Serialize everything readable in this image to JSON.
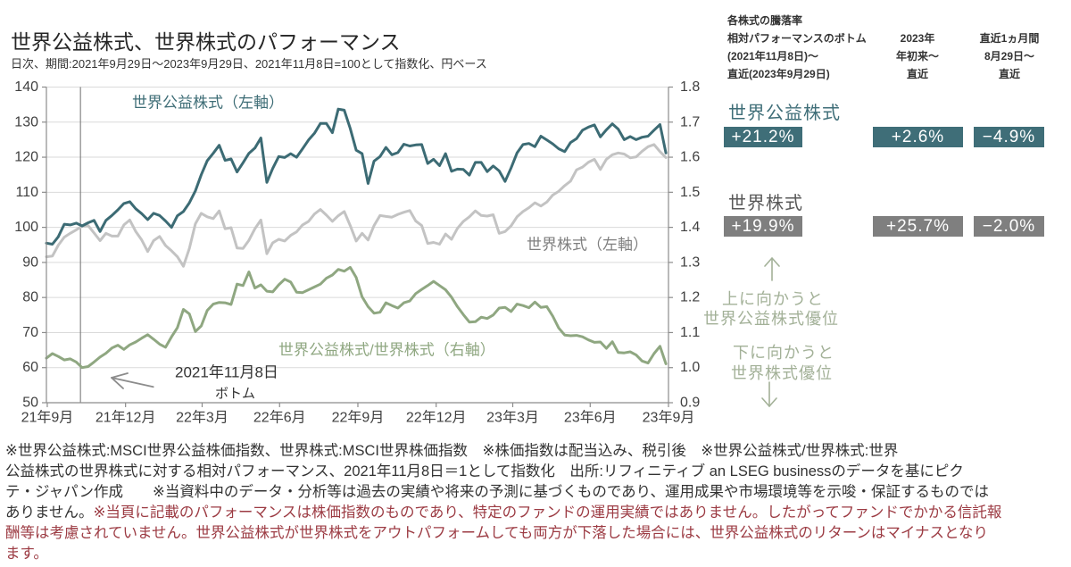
{
  "page": {
    "title": "世界公益株式、世界株式のパフォーマンス",
    "subtitle": "日次、期間:2021年9月29日～2023年9月29日、2021年11月8日=100として指数化、円ベース"
  },
  "chart_data": {
    "type": "line",
    "title": "世界公益株式、世界株式のパフォーマンス",
    "subtitle": "日次、期間:2021年9月29日～2023年9月29日、2021年11月8日=100として指数化、円ベース",
    "xlabel": "",
    "ylabel_left": "",
    "ylabel_right": "",
    "x_range": [
      "2021-09-29",
      "2023-09-30"
    ],
    "series_start_date": "2021-09-29",
    "series_step_days": 7,
    "x_ticks": [
      {
        "label": "21年9月",
        "date": "2021-09-30"
      },
      {
        "label": "21年12月",
        "date": "2021-12-31"
      },
      {
        "label": "22年3月",
        "date": "2022-03-31"
      },
      {
        "label": "22年6月",
        "date": "2022-06-30"
      },
      {
        "label": "22年9月",
        "date": "2022-09-30"
      },
      {
        "label": "22年12月",
        "date": "2022-12-31"
      },
      {
        "label": "23年3月",
        "date": "2023-03-31"
      },
      {
        "label": "23年6月",
        "date": "2023-06-30"
      },
      {
        "label": "23年9月",
        "date": "2023-09-30"
      }
    ],
    "y_left": {
      "range": [
        50,
        140
      ],
      "ticks": [
        50,
        60,
        70,
        80,
        90,
        100,
        110,
        120,
        130,
        140
      ]
    },
    "y_right": {
      "range": [
        0.9,
        1.8
      ],
      "ticks": [
        "0.9",
        "1.0",
        "1.1",
        "1.2",
        "1.3",
        "1.4",
        "1.5",
        "1.6",
        "1.7",
        "1.8"
      ]
    },
    "grid": "horizontal",
    "legend": "inline labels",
    "reference_line": {
      "date": "2021-11-08",
      "label": "2021年11月8日",
      "sublabel": "ボトム"
    },
    "series": [
      {
        "name": "世界公益株式",
        "label": "世界公益株式（左軸）",
        "axis": "left",
        "color": "#3c6b74",
        "label_color": "#3e6d76",
        "values": [
          95.5,
          95.2,
          97.3,
          100.9,
          100.7,
          101.2,
          100.4,
          101.3,
          102.0,
          98.8,
          102.0,
          103.4,
          105.0,
          106.8,
          107.3,
          105.3,
          103.9,
          102.2,
          104.0,
          103.4,
          101.8,
          100.0,
          103.3,
          104.5,
          107.0,
          110.4,
          115.0,
          119.0,
          121.1,
          123.4,
          119.1,
          119.5,
          115.8,
          118.4,
          121.1,
          122.6,
          125.5,
          112.8,
          116.8,
          120.2,
          119.9,
          121.0,
          120.0,
          122.4,
          124.9,
          126.8,
          129.6,
          129.6,
          127.0,
          133.7,
          133.4,
          128.2,
          122.0,
          121.0,
          112.5,
          118.9,
          120.2,
          122.8,
          120.7,
          121.3,
          123.7,
          123.2,
          123.5,
          123.6,
          118.2,
          119.4,
          117.6,
          121.0,
          116.0,
          116.6,
          116.5,
          114.9,
          118.5,
          118.5,
          115.9,
          117.5,
          116.1,
          113.1,
          116.9,
          121.2,
          123.6,
          123.9,
          123.0,
          126.0,
          124.9,
          123.8,
          122.4,
          121.6,
          124.2,
          125.3,
          127.7,
          128.6,
          129.2,
          125.8,
          127.8,
          129.5,
          128.0,
          125.0,
          125.9,
          125.0,
          125.7,
          126.0,
          127.7,
          129.3,
          121.2
        ]
      },
      {
        "name": "世界株式",
        "label": "世界株式（左軸）",
        "axis": "left",
        "color": "#c3c3c3",
        "label_color": "#7f7f7f",
        "values": [
          91.6,
          91.8,
          94.9,
          97.2,
          98.3,
          99.3,
          100.3,
          100.5,
          98.4,
          96.2,
          98.3,
          97.5,
          97.5,
          100.7,
          102.1,
          98.8,
          96.4,
          93.1,
          96.2,
          97.4,
          94.8,
          93.3,
          91.6,
          88.9,
          94.0,
          101.0,
          104.0,
          103.0,
          102.5,
          104.7,
          99.6,
          99.9,
          94.1,
          94.0,
          96.3,
          99.6,
          102.1,
          92.5,
          95.6,
          96.6,
          96.1,
          97.7,
          98.7,
          100.7,
          101.7,
          103.8,
          105.1,
          103.5,
          101.7,
          103.3,
          104.5,
          100.5,
          96.1,
          98.3,
          96.4,
          100.5,
          103.4,
          103.1,
          102.9,
          103.7,
          104.3,
          104.8,
          101.8,
          100.5,
          95.4,
          95.7,
          95.2,
          98.1,
          96.6,
          99.7,
          101.7,
          103.0,
          104.7,
          103.4,
          103.2,
          103.6,
          98.3,
          98.8,
          100.4,
          103.0,
          104.5,
          105.6,
          107.0,
          106.1,
          107.2,
          109.2,
          110.3,
          111.9,
          113.2,
          116.4,
          117.2,
          118.6,
          119.4,
          116.5,
          119.4,
          120.7,
          121.2,
          120.9,
          119.8,
          120.1,
          121.7,
          123.0,
          123.6,
          121.6,
          119.9
        ]
      },
      {
        "name": "世界公益株式/世界株式",
        "label": "世界公益株式/世界株式（右軸）",
        "axis": "right",
        "color": "#8fa781",
        "label_color": "#8fa781",
        "values": [
          1.027,
          1.04,
          1.032,
          1.022,
          1.025,
          1.016,
          1.0,
          1.003,
          1.016,
          1.03,
          1.041,
          1.056,
          1.064,
          1.052,
          1.065,
          1.073,
          1.084,
          1.094,
          1.081,
          1.067,
          1.058,
          1.088,
          1.114,
          1.166,
          1.153,
          1.103,
          1.119,
          1.163,
          1.181,
          1.186,
          1.185,
          1.18,
          1.238,
          1.234,
          1.273,
          1.227,
          1.236,
          1.218,
          1.216,
          1.236,
          1.252,
          1.244,
          1.215,
          1.214,
          1.222,
          1.23,
          1.238,
          1.255,
          1.264,
          1.28,
          1.275,
          1.286,
          1.257,
          1.202,
          1.174,
          1.155,
          1.158,
          1.185,
          1.177,
          1.17,
          1.185,
          1.19,
          1.211,
          1.223,
          1.234,
          1.246,
          1.234,
          1.222,
          1.201,
          1.174,
          1.151,
          1.13,
          1.131,
          1.144,
          1.14,
          1.15,
          1.17,
          1.172,
          1.16,
          1.181,
          1.177,
          1.171,
          1.187,
          1.172,
          1.174,
          1.147,
          1.113,
          1.093,
          1.091,
          1.092,
          1.088,
          1.079,
          1.072,
          1.073,
          1.055,
          1.074,
          1.043,
          1.042,
          1.045,
          1.036,
          1.019,
          1.013,
          1.04,
          1.061,
          1.011
        ]
      }
    ]
  },
  "returns_panel": {
    "title": "各株式の騰落率",
    "columns": [
      {
        "lines": [
          "相対パフォーマンスのボトム",
          "(2021年11月8日)～",
          "直近(2023年9月29日)"
        ]
      },
      {
        "lines": [
          "2023年",
          "年初来～",
          "直近"
        ]
      },
      {
        "lines": [
          "直近1ヵ月間",
          "8月29日～",
          "直近"
        ]
      }
    ],
    "rows": [
      {
        "name": "世界公益株式",
        "color": "#3f6e78",
        "values": [
          "+21.2%",
          "+2.6%",
          "−4.9%"
        ]
      },
      {
        "name": "世界株式",
        "color": "#7f7f7f",
        "values": [
          "+19.9%",
          "+25.7%",
          "−2.0%"
        ]
      }
    ],
    "indicator": {
      "color": "#a3b198",
      "up_lines": [
        "上に向かうと",
        "世界公益株式優位"
      ],
      "down_lines": [
        "下に向かうと",
        "世界株式優位"
      ]
    }
  },
  "footer": {
    "line1": "※世界公益株式:MSCI世界公益株価指数、世界株式:MSCI世界株価指数　※株価指数は配当込み、税引後　※世界公益株式/世界株式:世界",
    "line2": "公益株式の世界株式に対する相対パフォーマンス、2021年11月8日＝1として指数化　出所:リフィニティブ an LSEG businessのデータを基にピク",
    "line3": "テ・ジャパン作成　　※当資料中のデータ・分析等は過去の実績や将来の予測に基づくものであり、運用成果や市場環境等を示唆・保証するものでは",
    "line4_normal": "ありません。",
    "line4_warning": "※当頁に記載のパフォーマンスは株価指数のものであり、特定のファンドの運用実績ではありません。したがってファンドでかかる信託報",
    "line5_warning": "酬等は考慮されていません。世界公益株式が世界株式をアウトパフォームしても両方が下落した場合には、世界公益株式のリターンはマイナスとなり",
    "line6_warning": "ます。",
    "warning_color": "#9c3b43"
  }
}
